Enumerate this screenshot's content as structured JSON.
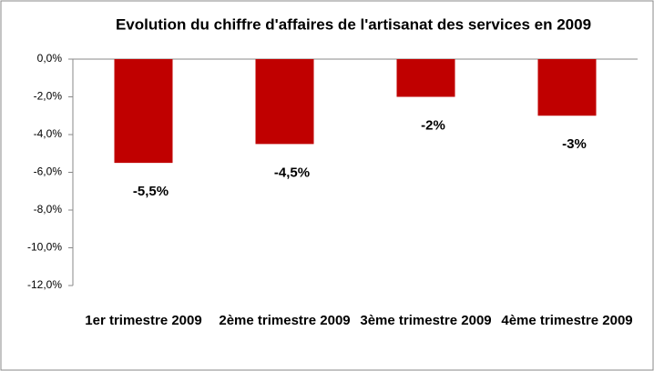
{
  "chart_data": {
    "type": "bar",
    "title": "Evolution du chiffre d'affaires  de l'artisanat des services en 2009",
    "categories": [
      "1er trimestre 2009",
      "2ème trimestre 2009",
      "3ème trimestre 2009",
      "4ème trimestre 2009"
    ],
    "values": [
      -5.5,
      -4.5,
      -2,
      -3
    ],
    "value_labels": [
      "-5,5%",
      "-4,5%",
      "-2%",
      "-3%"
    ],
    "color": "#c00000",
    "ylim": [
      -12,
      0
    ],
    "yticks": [
      {
        "value": 0,
        "label": "0,0%"
      },
      {
        "value": -2,
        "label": "-2,0%"
      },
      {
        "value": -4,
        "label": "-4,0%"
      },
      {
        "value": -6,
        "label": "-6,0%"
      },
      {
        "value": -8,
        "label": "-8,0%"
      },
      {
        "value": -10,
        "label": "-10,0%"
      },
      {
        "value": -12,
        "label": "-12,0%"
      }
    ],
    "grid": false
  }
}
